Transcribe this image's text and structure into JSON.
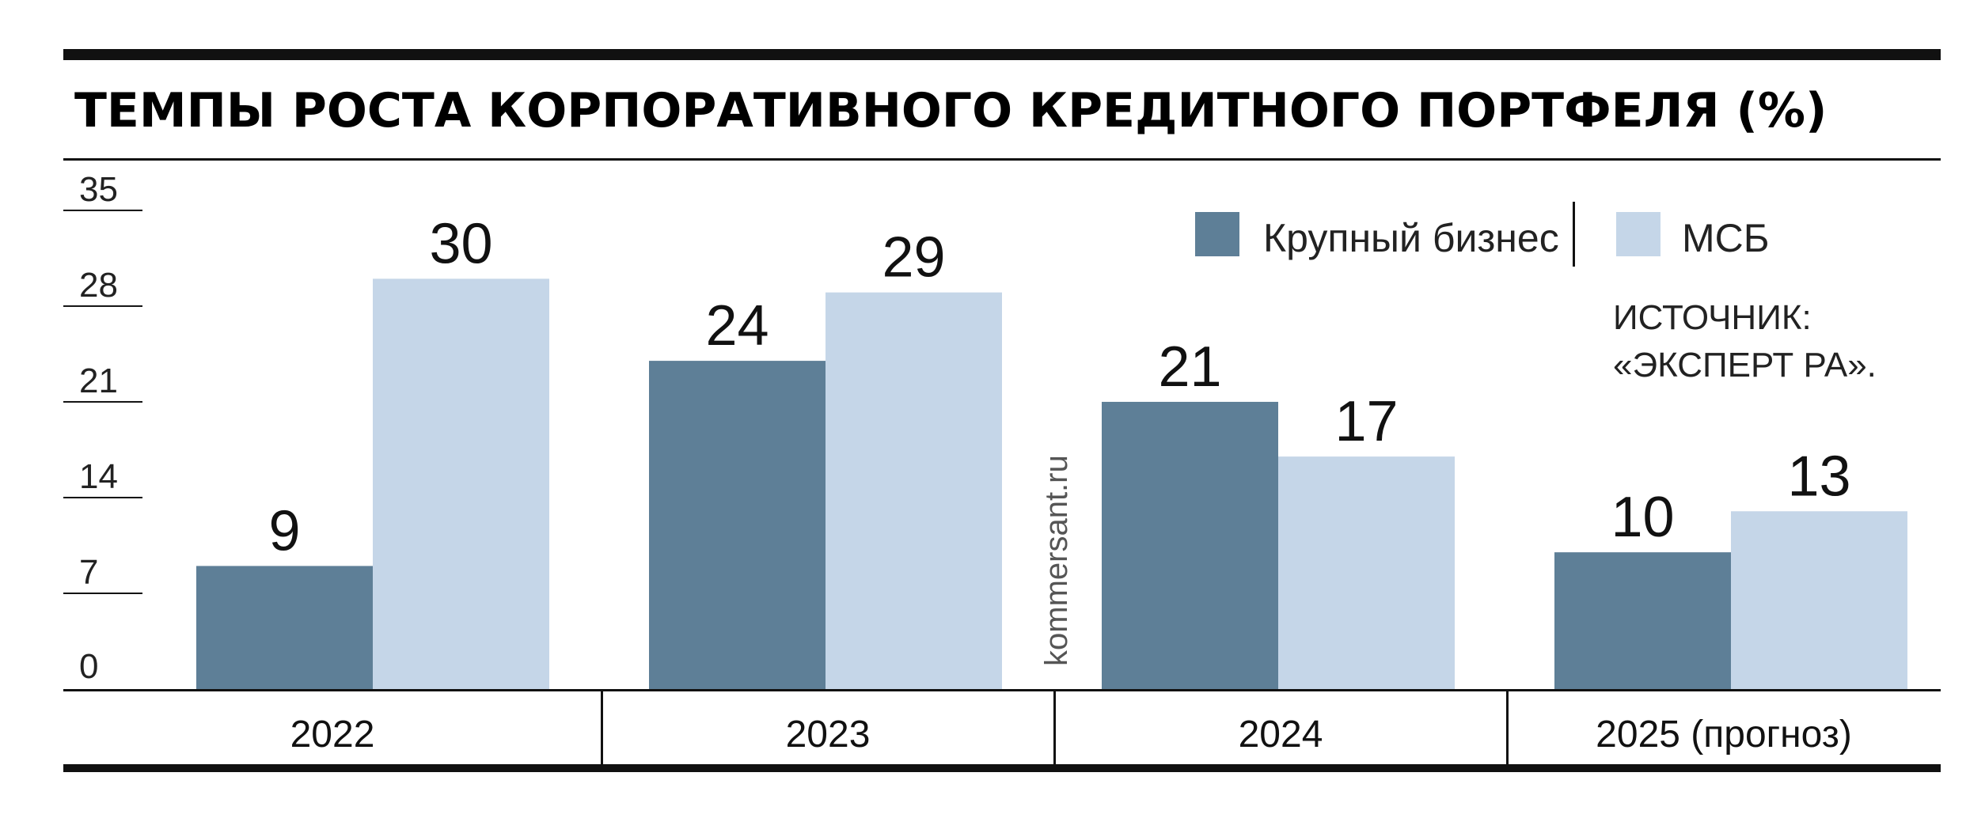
{
  "chart_data": {
    "type": "bar",
    "title": "ТЕМПЫ РОСТА КОРПОРАТИВНОГО КРЕДИТНОГО ПОРТФЕЛЯ (%)",
    "categories": [
      "2022",
      "2023",
      "2024",
      "2025 (прогноз)"
    ],
    "series": [
      {
        "name": "Крупный бизнес",
        "color": "#5e7f97",
        "values": [
          9,
          24,
          21,
          10
        ]
      },
      {
        "name": "МСБ",
        "color": "#c5d6e8",
        "values": [
          30,
          29,
          17,
          13
        ]
      }
    ],
    "yticks": [
      0,
      7,
      14,
      21,
      28,
      35
    ],
    "ylim": [
      0,
      36.5
    ],
    "grid": false,
    "legend_position": "top-right",
    "source_lines": [
      "ИСТОЧНИК:",
      "«ЭКСПЕРТ РА»."
    ],
    "watermark": "kommersant.ru"
  }
}
